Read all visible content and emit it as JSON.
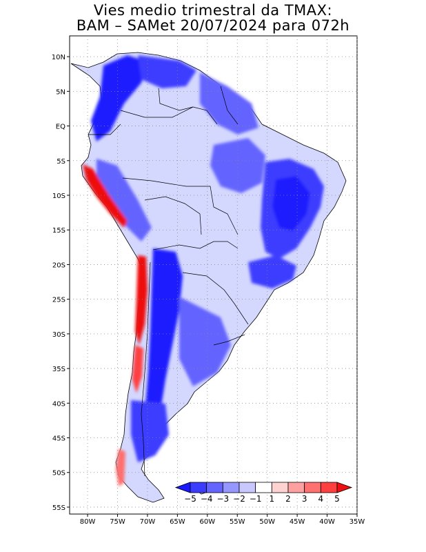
{
  "title": {
    "line1": "Vies medio trimestral da TMAX:",
    "line2": "BAM – SAMet 20/07/2024  para 072h"
  },
  "map": {
    "lon_range": [
      -83,
      -35
    ],
    "lat_range": [
      -56,
      13
    ],
    "lon_ticks": [
      {
        "value": -80,
        "label": "80W"
      },
      {
        "value": -75,
        "label": "75W"
      },
      {
        "value": -70,
        "label": "70W"
      },
      {
        "value": -65,
        "label": "65W"
      },
      {
        "value": -60,
        "label": "60W"
      },
      {
        "value": -55,
        "label": "55W"
      },
      {
        "value": -50,
        "label": "50W"
      },
      {
        "value": -45,
        "label": "45W"
      },
      {
        "value": -40,
        "label": "40W"
      },
      {
        "value": -35,
        "label": "35W"
      }
    ],
    "lat_ticks": [
      {
        "value": 10,
        "label": "10N"
      },
      {
        "value": 5,
        "label": "5N"
      },
      {
        "value": 0,
        "label": "EQ"
      },
      {
        "value": -5,
        "label": "5S"
      },
      {
        "value": -10,
        "label": "10S"
      },
      {
        "value": -15,
        "label": "15S"
      },
      {
        "value": -20,
        "label": "20S"
      },
      {
        "value": -25,
        "label": "25S"
      },
      {
        "value": -30,
        "label": "30S"
      },
      {
        "value": -35,
        "label": "35S"
      },
      {
        "value": -40,
        "label": "40S"
      },
      {
        "value": -45,
        "label": "45S"
      },
      {
        "value": -50,
        "label": "50S"
      },
      {
        "value": -55,
        "label": "55S"
      }
    ],
    "grid": "dotted",
    "colors": {
      "land_base": "#d4d8ff",
      "lt_-5": "#1a1aff",
      "-5_-4": "#3c3cff",
      "-4_-3": "#6464ff",
      "-3_-2": "#9696ff",
      "-2_-1": "#c8c8ff",
      "-1_1": "#ffffff",
      "1_2": "#ffd2d2",
      "2_3": "#ffa0a0",
      "3_4": "#ff7070",
      "4_5": "#ff4040",
      "gt_5": "#ee1010"
    }
  },
  "colorbar": {
    "labels": [
      "−5",
      "−4",
      "−3",
      "−2",
      "−1",
      "1",
      "2",
      "3",
      "4",
      "5"
    ],
    "colors": [
      "#1a1aff",
      "#3c3cff",
      "#6464ff",
      "#9696ff",
      "#c8c8ff",
      "#ffffff",
      "#ffd2d2",
      "#ffa0a0",
      "#ff7070",
      "#ff4040",
      "#ee1010"
    ],
    "position": "bottom-right inside map"
  }
}
